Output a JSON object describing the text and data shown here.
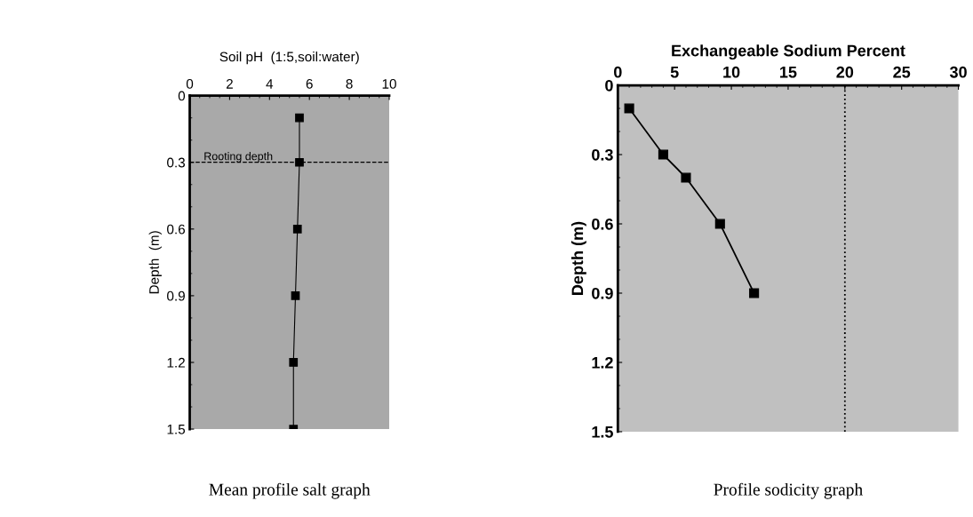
{
  "chart_data": [
    {
      "type": "line",
      "xlabel": "Soil pH  (1:5,soil:water)",
      "ylabel": "Depth  (m)",
      "annotations": [
        "Mean profile salt graph"
      ],
      "x": [
        5.5,
        5.5,
        5.4,
        5.3,
        5.2,
        5.2
      ],
      "values": [
        0.1,
        0.3,
        0.6,
        0.9,
        1.2,
        1.5
      ],
      "color": "#000000",
      "marker": "square",
      "xlim": [
        0,
        10
      ],
      "xticks": [
        0,
        2,
        4,
        6,
        8,
        10
      ],
      "ylim": [
        1.5,
        0
      ],
      "yticks": [
        0,
        0.3,
        0.6,
        0.9,
        1.2,
        1.5
      ],
      "ref_lines": [
        {
          "axis": "y",
          "value": 0.3,
          "label": "Rooting depth",
          "line_style": "dashed",
          "color": "#000000"
        }
      ],
      "grid": false,
      "legend": false
    },
    {
      "type": "line",
      "xlabel": "Exchangeable Sodium Percent",
      "ylabel": "Depth (m)",
      "annotations": [
        "Profile sodicity graph"
      ],
      "x": [
        1,
        4,
        6,
        9,
        12
      ],
      "values": [
        0.1,
        0.3,
        0.4,
        0.6,
        0.9
      ],
      "color": "#000000",
      "marker": "square",
      "xlim": [
        0,
        30
      ],
      "xticks": [
        0,
        5,
        10,
        15,
        20,
        25,
        30
      ],
      "ylim": [
        1.5,
        0
      ],
      "yticks": [
        0,
        0.3,
        0.6,
        0.9,
        1.2,
        1.5
      ],
      "ref_lines": [
        {
          "axis": "x",
          "value": 20,
          "line_style": "dotted",
          "color": "#000000"
        }
      ],
      "grid": false,
      "legend": false
    }
  ]
}
